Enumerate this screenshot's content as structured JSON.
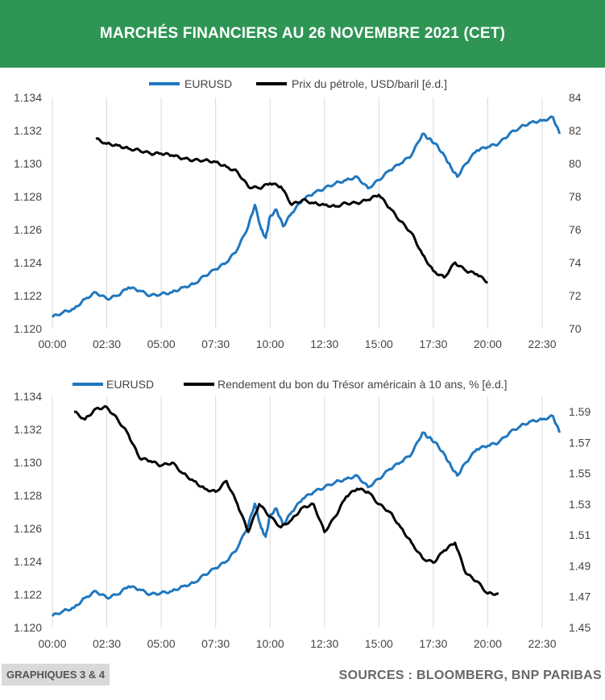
{
  "title": "MARCHÉS FINANCIERS AU 26 NOVEMBRE 2021 (CET)",
  "footer": {
    "label": "GRAPHIQUES 3 & 4",
    "sources": "SOURCES : BLOOMBERG, BNP PARIBAS"
  },
  "colors": {
    "banner": "#2f9555",
    "eurusd": "#1f77bf",
    "secondary": "#000000"
  },
  "chart_data": [
    {
      "type": "line",
      "x_ticks": [
        "00:00",
        "02:30",
        "05:00",
        "07:30",
        "10:00",
        "12:30",
        "15:00",
        "17:30",
        "20:00",
        "22:30"
      ],
      "x_range_hours": [
        0,
        23.5
      ],
      "left_axis": {
        "ticks": [
          "1.120",
          "1.122",
          "1.124",
          "1.126",
          "1.128",
          "1.130",
          "1.132",
          "1.134"
        ],
        "ylim": [
          1.12,
          1.134
        ]
      },
      "right_axis": {
        "ticks": [
          "70",
          "72",
          "74",
          "76",
          "78",
          "80",
          "82",
          "84"
        ],
        "ylim": [
          70,
          84
        ]
      },
      "grid": "vertical",
      "legend": "top",
      "series": [
        {
          "name": "EURUSD",
          "axis": "left",
          "color": "#1f77bf",
          "x": [
            0,
            0.5,
            1,
            1.5,
            2,
            2.5,
            3,
            3.5,
            4,
            4.5,
            5,
            5.5,
            6,
            6.5,
            7,
            7.5,
            8,
            8.5,
            9,
            9.3,
            9.6,
            9.8,
            10,
            10.3,
            10.6,
            11,
            11.5,
            12,
            12.5,
            13,
            13.5,
            14,
            14.5,
            15,
            15.5,
            16,
            16.5,
            17,
            17.3,
            17.6,
            18,
            18.3,
            18.6,
            19,
            19.5,
            20,
            20.5,
            21,
            21.5,
            22,
            22.5,
            23,
            23.3
          ],
          "values": [
            1.1207,
            1.121,
            1.1212,
            1.1218,
            1.1222,
            1.1218,
            1.122,
            1.1225,
            1.1223,
            1.122,
            1.1221,
            1.1222,
            1.1225,
            1.1227,
            1.1232,
            1.1236,
            1.124,
            1.1248,
            1.1262,
            1.1275,
            1.126,
            1.1255,
            1.1268,
            1.1272,
            1.1262,
            1.127,
            1.1278,
            1.1282,
            1.1285,
            1.1288,
            1.129,
            1.1292,
            1.1285,
            1.129,
            1.1296,
            1.13,
            1.1305,
            1.1318,
            1.1315,
            1.1312,
            1.1305,
            1.1298,
            1.1292,
            1.13,
            1.1308,
            1.131,
            1.1312,
            1.1318,
            1.1322,
            1.1325,
            1.1326,
            1.1328,
            1.1318
          ]
        },
        {
          "name": "Prix du pétrole, USD/baril [é.d.]",
          "axis": "right",
          "color": "#000000",
          "x": [
            2,
            2.5,
            3,
            3.5,
            4,
            4.5,
            5,
            5.5,
            6,
            6.5,
            7,
            7.5,
            8,
            8.5,
            9,
            9.5,
            10,
            10.5,
            11,
            11.5,
            12,
            12.5,
            13,
            13.5,
            14,
            14.5,
            15,
            15.5,
            16,
            16.5,
            17,
            17.5,
            18,
            18.5,
            19,
            19.5,
            20
          ],
          "values": [
            81.5,
            81.2,
            81.1,
            80.9,
            80.8,
            80.6,
            80.6,
            80.5,
            80.3,
            80.2,
            80.2,
            80.1,
            79.8,
            79.5,
            78.6,
            78.5,
            78.8,
            78.6,
            77.5,
            77.8,
            77.6,
            77.5,
            77.4,
            77.6,
            77.6,
            77.8,
            78.1,
            77.3,
            76.5,
            75.8,
            74.5,
            73.5,
            73.1,
            74.0,
            73.5,
            73.3,
            72.8
          ]
        }
      ]
    },
    {
      "type": "line",
      "x_ticks": [
        "00:00",
        "02:30",
        "05:00",
        "07:30",
        "10:00",
        "12:30",
        "15:00",
        "17:30",
        "20:00",
        "22:30"
      ],
      "x_range_hours": [
        0,
        23.5
      ],
      "left_axis": {
        "ticks": [
          "1.120",
          "1.122",
          "1.124",
          "1.126",
          "1.128",
          "1.130",
          "1.132",
          "1.134"
        ],
        "ylim": [
          1.12,
          1.134
        ]
      },
      "right_axis": {
        "ticks": [
          "1.45",
          "1.47",
          "1.49",
          "1.51",
          "1.53",
          "1.55",
          "1.57",
          "1.59"
        ],
        "ylim": [
          1.45,
          1.6
        ]
      },
      "grid": "vertical",
      "legend": "top",
      "series": [
        {
          "name": "EURUSD",
          "axis": "left",
          "color": "#1f77bf",
          "x": [
            0,
            0.5,
            1,
            1.5,
            2,
            2.5,
            3,
            3.5,
            4,
            4.5,
            5,
            5.5,
            6,
            6.5,
            7,
            7.5,
            8,
            8.5,
            9,
            9.3,
            9.6,
            9.8,
            10,
            10.3,
            10.6,
            11,
            11.5,
            12,
            12.5,
            13,
            13.5,
            14,
            14.5,
            15,
            15.5,
            16,
            16.5,
            17,
            17.3,
            17.6,
            18,
            18.3,
            18.6,
            19,
            19.5,
            20,
            20.5,
            21,
            21.5,
            22,
            22.5,
            23,
            23.3
          ],
          "values": [
            1.1207,
            1.121,
            1.1212,
            1.1218,
            1.1222,
            1.1218,
            1.122,
            1.1225,
            1.1223,
            1.122,
            1.1221,
            1.1222,
            1.1225,
            1.1227,
            1.1232,
            1.1236,
            1.124,
            1.1248,
            1.1262,
            1.1275,
            1.126,
            1.1255,
            1.1268,
            1.1272,
            1.1262,
            1.127,
            1.1278,
            1.1282,
            1.1285,
            1.1288,
            1.129,
            1.1292,
            1.1285,
            1.129,
            1.1296,
            1.13,
            1.1305,
            1.1318,
            1.1315,
            1.1312,
            1.1305,
            1.1298,
            1.1292,
            1.13,
            1.1308,
            1.131,
            1.1312,
            1.1318,
            1.1322,
            1.1325,
            1.1326,
            1.1328,
            1.1318
          ]
        },
        {
          "name": "Rendement du bon du Trésor américain à 10 ans, %  [é.d.]",
          "axis": "right",
          "color": "#000000",
          "x": [
            1,
            1.5,
            2,
            2.5,
            3,
            3.5,
            4,
            4.5,
            5,
            5.5,
            6,
            6.5,
            7,
            7.5,
            8,
            8.5,
            9,
            9.5,
            10,
            10.5,
            11,
            11.5,
            12,
            12.5,
            13,
            13.5,
            14,
            14.5,
            15,
            15.5,
            16,
            16.5,
            17,
            17.5,
            18,
            18.5,
            19,
            19.5,
            20,
            20.5
          ],
          "values": [
            1.59,
            1.585,
            1.592,
            1.593,
            1.585,
            1.575,
            1.56,
            1.558,
            1.555,
            1.557,
            1.55,
            1.545,
            1.54,
            1.538,
            1.545,
            1.53,
            1.512,
            1.53,
            1.522,
            1.515,
            1.52,
            1.528,
            1.53,
            1.512,
            1.522,
            1.535,
            1.54,
            1.538,
            1.53,
            1.525,
            1.515,
            1.505,
            1.495,
            1.492,
            1.5,
            1.505,
            1.485,
            1.48,
            1.472,
            1.472
          ]
        }
      ]
    }
  ]
}
